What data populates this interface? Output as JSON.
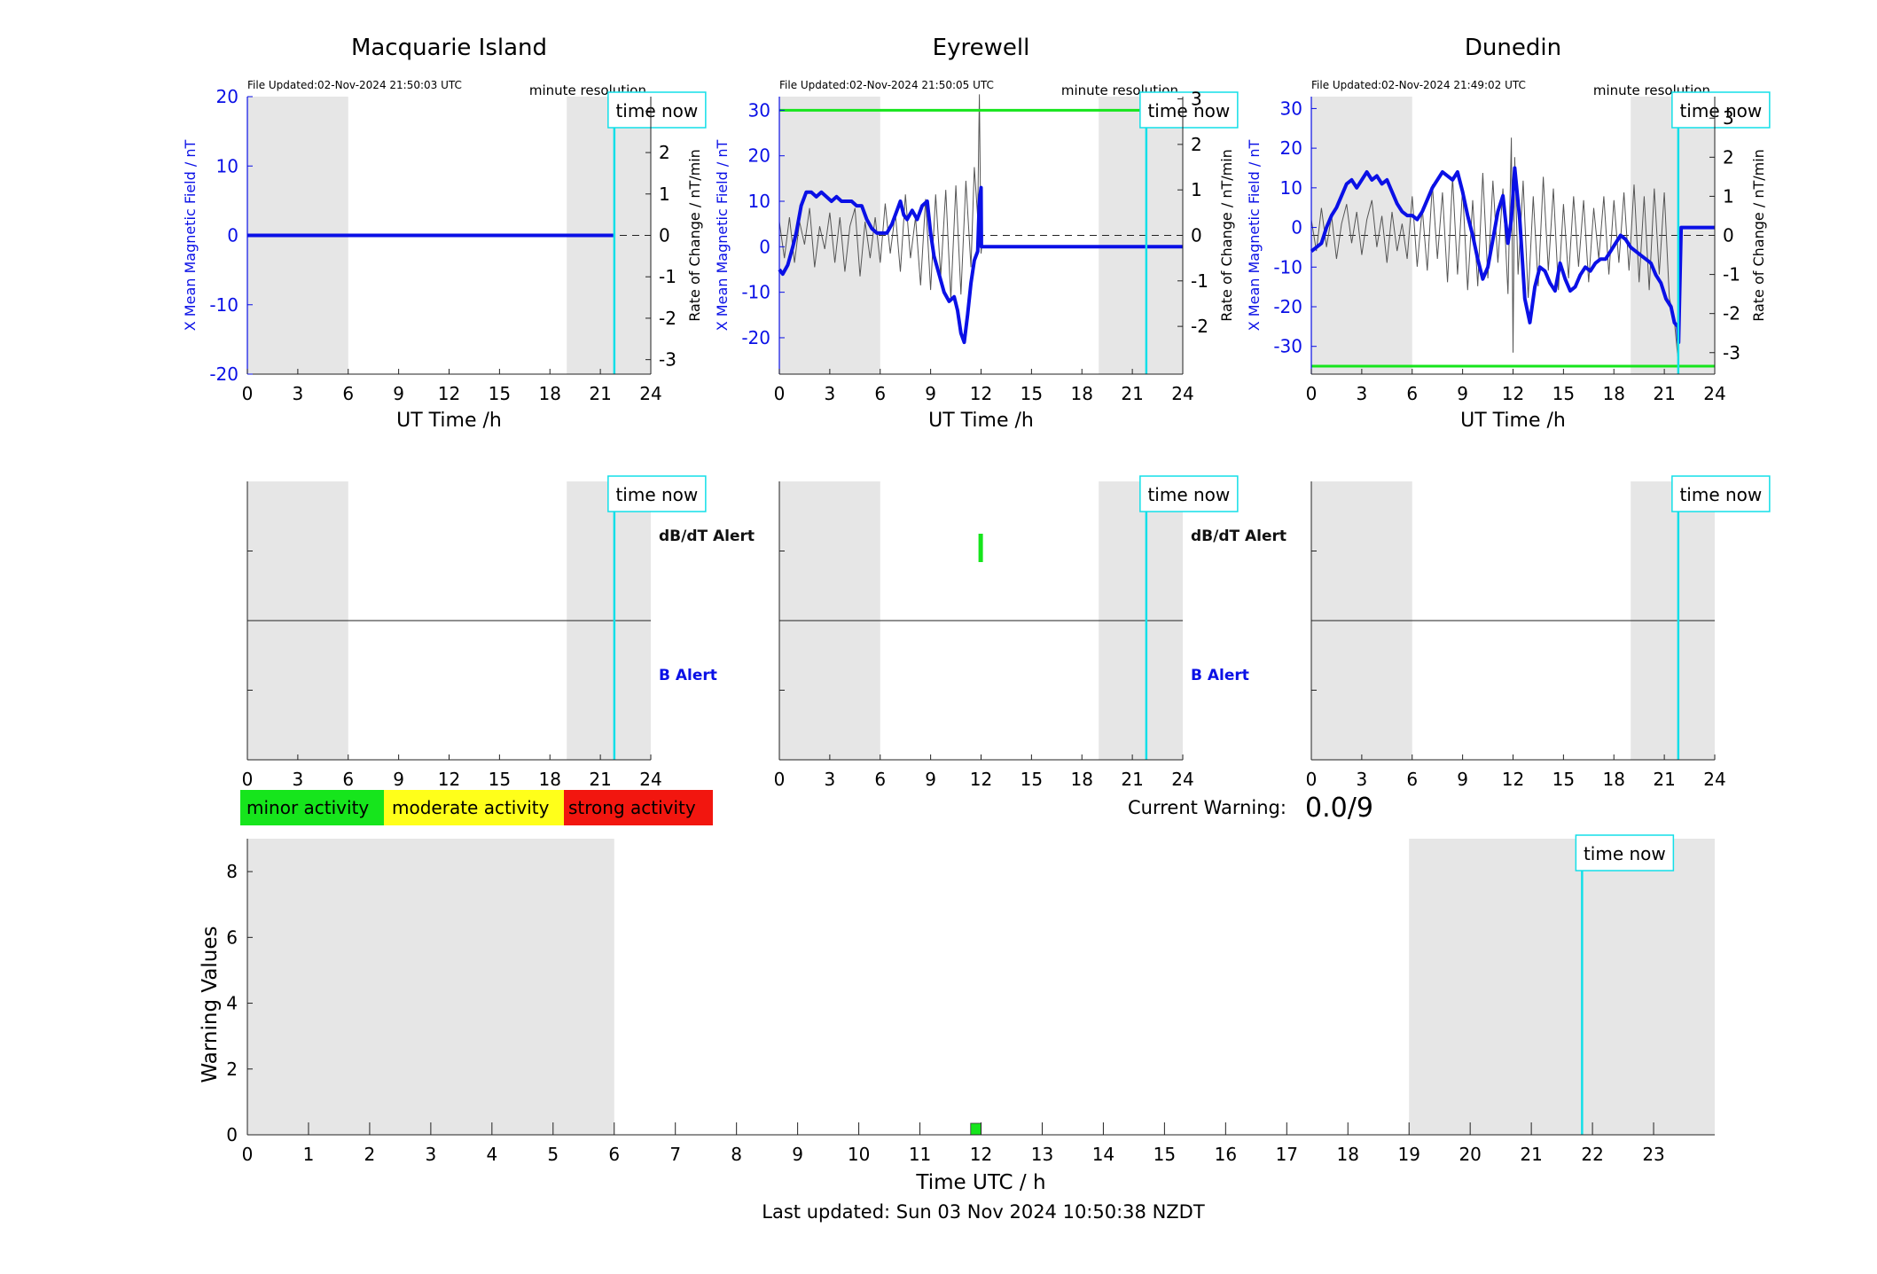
{
  "colors": {
    "magnetic": "#0a10e6",
    "rate": "#555555",
    "time_now": "#13dfe8",
    "threshold": "#16e51c",
    "shade": "#e6e6e6",
    "minor": "#16e51c",
    "moderate": "#ffff1a",
    "strong": "#f2160f"
  },
  "common": {
    "file_updated_prefix": "File Updated:",
    "resolution": "minute resolution",
    "time_now": "time now",
    "ut_xlabel": "UT Time /h",
    "y_left_label": "X Mean Magnetic Field / nT",
    "y_right_label": "Rate of Change / nT/min",
    "dbdt_alert": "dB/dT Alert",
    "b_alert": "B Alert"
  },
  "stations": [
    {
      "name": "Macquarie Island",
      "file_updated": "02-Nov-2024 21:50:03 UTC",
      "left_ylim": [
        -20,
        20
      ],
      "left_ticks": [
        -20,
        -10,
        0,
        10,
        20
      ],
      "right_ylim": [
        -3.35,
        3.35
      ],
      "right_ticks": [
        -3,
        -2,
        -1,
        0,
        1,
        2,
        3
      ],
      "right_tick_labels": [
        "-3",
        "-2",
        "-1",
        "0",
        "1",
        "2",
        ""
      ],
      "threshold": null,
      "show_alert_labels": true,
      "dbdt_alert_bars": []
    },
    {
      "name": "Eyrewell",
      "file_updated": "02-Nov-2024 21:50:05 UTC",
      "left_ylim": [
        -28,
        33
      ],
      "left_ticks": [
        -20,
        -10,
        0,
        10,
        20,
        30
      ],
      "right_ylim": [
        -3.05,
        3.05
      ],
      "right_ticks": [
        -2,
        -1,
        0,
        1,
        2,
        3
      ],
      "right_tick_labels": [
        "-2",
        "-1",
        "0",
        "1",
        "2",
        "3"
      ],
      "threshold": 30,
      "show_alert_labels": true,
      "dbdt_alert_bars": [
        {
          "start": 11.9,
          "end": 12.0
        }
      ]
    },
    {
      "name": "Dunedin",
      "file_updated": "02-Nov-2024 21:49:02 UTC",
      "left_ylim": [
        -37,
        33
      ],
      "left_ticks": [
        -30,
        -20,
        -10,
        0,
        10,
        20,
        30
      ],
      "right_ylim": [
        -3.55,
        3.55
      ],
      "right_ticks": [
        -3,
        -2,
        -1,
        0,
        1,
        2,
        3
      ],
      "right_tick_labels": [
        "-3",
        "-2",
        "-1",
        "0",
        "1",
        "2",
        "3"
      ],
      "threshold": -35,
      "show_alert_labels": false,
      "dbdt_alert_bars": []
    }
  ],
  "chart_data": [
    {
      "type": "line",
      "title": "Macquarie Island",
      "xlabel": "UT Time /h",
      "xlim": [
        0,
        24
      ],
      "x_ticks": [
        0,
        3,
        6,
        9,
        12,
        15,
        18,
        21,
        24
      ],
      "ylabel": "X Mean Magnetic Field / nT",
      "ylim": [
        -20,
        20
      ],
      "y2label": "Rate of Change / nT/min",
      "night_shading": [
        [
          0,
          6
        ],
        [
          19,
          24
        ]
      ],
      "time_now": 21.83,
      "series": [
        {
          "axis": "left",
          "x": [
            0,
            21.8
          ],
          "y": [
            0,
            0
          ]
        }
      ]
    },
    {
      "type": "line",
      "title": "Eyrewell",
      "xlabel": "UT Time /h",
      "xlim": [
        0,
        24
      ],
      "x_ticks": [
        0,
        3,
        6,
        9,
        12,
        15,
        18,
        21,
        24
      ],
      "ylabel": "X Mean Magnetic Field / nT",
      "ylim": [
        -28,
        33
      ],
      "y2label": "Rate of Change / nT/min",
      "night_shading": [
        [
          0,
          6
        ],
        [
          19,
          24
        ]
      ],
      "time_now": 21.83,
      "series": [
        {
          "axis": "left",
          "x": [
            0,
            0.2,
            0.5,
            0.8,
            1.0,
            1.3,
            1.6,
            1.9,
            2.2,
            2.5,
            2.8,
            3.1,
            3.4,
            3.7,
            4.0,
            4.3,
            4.6,
            4.9,
            5.2,
            5.5,
            5.8,
            6.1,
            6.4,
            6.7,
            7.0,
            7.2,
            7.4,
            7.6,
            7.9,
            8.2,
            8.5,
            8.8,
            9.0,
            9.2,
            9.5,
            9.8,
            10.1,
            10.4,
            10.6,
            10.8,
            11.0,
            11.2,
            11.4,
            11.6,
            11.8,
            11.9,
            12.0,
            12.02,
            24.0
          ],
          "y": [
            -5,
            -6,
            -4,
            0,
            3,
            9,
            12,
            12,
            11,
            12,
            11,
            10,
            11,
            10,
            10,
            10,
            9,
            9,
            6,
            4,
            3,
            3,
            3,
            5,
            8,
            10,
            7,
            6,
            8,
            6,
            9,
            10,
            3,
            -2,
            -6,
            -10,
            -12,
            -11,
            -14,
            -19,
            -21,
            -15,
            -8,
            -3,
            -1,
            10,
            13,
            0,
            0
          ]
        },
        {
          "axis": "right",
          "x": [
            0,
            0.3,
            0.6,
            0.9,
            1.2,
            1.5,
            1.8,
            2.1,
            2.4,
            2.7,
            3.0,
            3.3,
            3.6,
            3.9,
            4.2,
            4.5,
            4.8,
            5.1,
            5.4,
            5.7,
            6.0,
            6.3,
            6.6,
            6.9,
            7.2,
            7.5,
            7.8,
            8.1,
            8.4,
            8.7,
            9.0,
            9.3,
            9.6,
            9.9,
            10.2,
            10.5,
            10.8,
            11.1,
            11.4,
            11.6,
            11.8,
            11.9,
            12.0,
            12.1
          ],
          "y": [
            0.3,
            -0.5,
            0.4,
            -0.6,
            0.3,
            -0.2,
            0.6,
            -0.7,
            0.2,
            -0.3,
            0.5,
            -0.6,
            0.4,
            -0.8,
            0.2,
            0.6,
            -0.9,
            0.3,
            -0.5,
            0.4,
            -0.6,
            0.7,
            -0.4,
            0.5,
            -0.8,
            0.9,
            -0.5,
            0.4,
            -1.1,
            0.8,
            -1.2,
            0.9,
            -0.9,
            1.0,
            -1.4,
            1.1,
            -1.3,
            1.2,
            -0.7,
            1.5,
            0.4,
            3.1,
            -0.4,
            0
          ]
        }
      ]
    },
    {
      "type": "line",
      "title": "Dunedin",
      "xlabel": "UT Time /h",
      "xlim": [
        0,
        24
      ],
      "x_ticks": [
        0,
        3,
        6,
        9,
        12,
        15,
        18,
        21,
        24
      ],
      "ylabel": "X Mean Magnetic Field / nT",
      "ylim": [
        -37,
        33
      ],
      "y2label": "Rate of Change / nT/min",
      "night_shading": [
        [
          0,
          6
        ],
        [
          19,
          24
        ]
      ],
      "time_now": 21.83,
      "series": [
        {
          "axis": "left",
          "x": [
            0,
            0.3,
            0.6,
            0.9,
            1.2,
            1.5,
            1.8,
            2.1,
            2.4,
            2.7,
            3.0,
            3.3,
            3.6,
            3.9,
            4.2,
            4.5,
            4.8,
            5.1,
            5.4,
            5.7,
            6.0,
            6.3,
            6.6,
            6.9,
            7.2,
            7.5,
            7.8,
            8.1,
            8.4,
            8.7,
            9.0,
            9.3,
            9.6,
            9.9,
            10.2,
            10.5,
            10.8,
            11.1,
            11.4,
            11.7,
            11.9,
            12.1,
            12.4,
            12.7,
            13.0,
            13.3,
            13.6,
            13.9,
            14.2,
            14.5,
            14.8,
            15.1,
            15.4,
            15.7,
            16.0,
            16.3,
            16.6,
            16.9,
            17.2,
            17.5,
            17.8,
            18.1,
            18.4,
            18.7,
            19.0,
            19.3,
            19.6,
            19.9,
            20.2,
            20.5,
            20.8,
            21.1,
            21.4,
            21.6,
            21.8,
            21.85,
            22.0,
            24.0
          ],
          "y": [
            -6,
            -5,
            -4,
            0,
            3,
            5,
            8,
            11,
            12,
            10,
            12,
            14,
            12,
            13,
            11,
            12,
            9,
            6,
            4,
            3,
            3,
            2,
            4,
            7,
            10,
            12,
            14,
            13,
            12,
            14,
            9,
            3,
            -2,
            -8,
            -13,
            -10,
            -3,
            4,
            8,
            -4,
            2,
            15,
            2,
            -18,
            -24,
            -15,
            -10,
            -11,
            -14,
            -16,
            -9,
            -13,
            -16,
            -15,
            -12,
            -10,
            -11,
            -9,
            -8,
            -8,
            -6,
            -4,
            -2,
            -3,
            -5,
            -6,
            -7,
            -8,
            -9,
            -12,
            -14,
            -18,
            -20,
            -24,
            -25,
            -29,
            0,
            0
          ]
        },
        {
          "axis": "right",
          "x": [
            0,
            0.3,
            0.6,
            0.9,
            1.2,
            1.5,
            1.8,
            2.1,
            2.4,
            2.7,
            3.0,
            3.3,
            3.6,
            3.9,
            4.2,
            4.5,
            4.8,
            5.1,
            5.4,
            5.7,
            6.0,
            6.3,
            6.6,
            6.9,
            7.2,
            7.5,
            7.8,
            8.1,
            8.4,
            8.7,
            9.0,
            9.3,
            9.6,
            9.9,
            10.2,
            10.5,
            10.8,
            11.1,
            11.4,
            11.7,
            11.9,
            12.0,
            12.1,
            12.3,
            12.6,
            12.9,
            13.2,
            13.5,
            13.8,
            14.1,
            14.4,
            14.7,
            15.0,
            15.3,
            15.6,
            15.9,
            16.2,
            16.5,
            16.8,
            17.1,
            17.4,
            17.7,
            18.0,
            18.3,
            18.6,
            18.9,
            19.2,
            19.5,
            19.8,
            20.1,
            20.4,
            20.7,
            21.0,
            21.3,
            21.6,
            21.8
          ],
          "y": [
            0.4,
            -0.4,
            0.7,
            -0.3,
            0.5,
            -0.6,
            0.3,
            0.8,
            -0.2,
            0.6,
            -0.5,
            0.4,
            0.9,
            -0.3,
            0.5,
            -0.7,
            0.6,
            -0.4,
            0.3,
            -0.6,
            1.0,
            -0.8,
            0.7,
            -0.9,
            1.3,
            -0.6,
            1.1,
            -1.2,
            1.5,
            -1.0,
            1.2,
            -1.4,
            0.9,
            -1.3,
            1.6,
            -1.1,
            1.4,
            -0.7,
            1.2,
            -1.5,
            2.5,
            -3.0,
            2.0,
            -1.0,
            1.4,
            -1.6,
            1.0,
            -1.3,
            1.5,
            -0.9,
            1.2,
            -1.4,
            0.8,
            -1.1,
            1.0,
            -0.8,
            0.9,
            -1.2,
            0.7,
            -0.6,
            1.0,
            -1.0,
            0.9,
            -0.7,
            1.1,
            -0.9,
            1.3,
            -1.2,
            1.0,
            -1.4,
            1.2,
            -1.0,
            1.1,
            -1.6,
            -2.2,
            -3.1
          ]
        }
      ]
    },
    {
      "type": "bar",
      "title": "",
      "xlabel": "Time UTC / h",
      "ylabel": "Warning Values",
      "xlim": [
        0,
        24
      ],
      "x_ticks": [
        0,
        1,
        2,
        3,
        4,
        5,
        6,
        7,
        8,
        9,
        10,
        11,
        12,
        13,
        14,
        15,
        16,
        17,
        18,
        19,
        20,
        21,
        22,
        23
      ],
      "ylim": [
        0,
        9
      ],
      "y_ticks": [
        0,
        2,
        4,
        6,
        8
      ],
      "night_shading": [
        [
          0,
          6
        ],
        [
          19,
          24
        ]
      ],
      "time_now": 21.83,
      "bars": [
        {
          "x_start": 11.83,
          "x_end": 12.0,
          "value": 0.35,
          "level": "minor"
        }
      ]
    }
  ],
  "legend": [
    {
      "label": "minor activity",
      "level": "minor"
    },
    {
      "label": "moderate activity",
      "level": "moderate"
    },
    {
      "label": "strong activity",
      "level": "strong"
    }
  ],
  "warning": {
    "label": "Current Warning:",
    "value": "0.0/9"
  },
  "footer": {
    "last_updated": "Last updated: Sun 03 Nov 2024 10:50:38 NZDT"
  }
}
